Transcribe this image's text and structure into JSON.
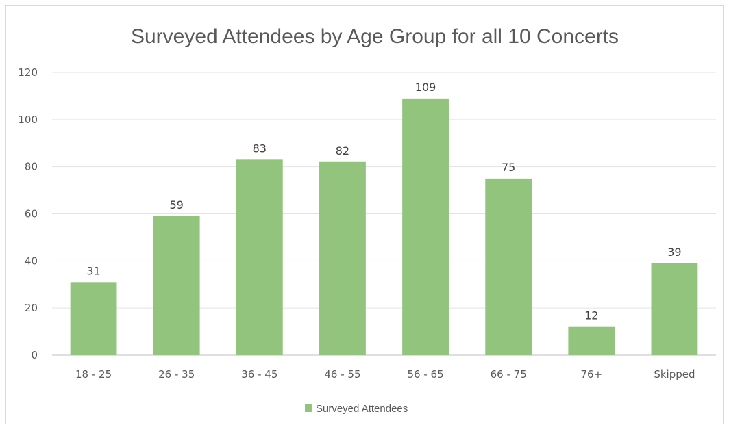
{
  "chart_data": {
    "type": "bar",
    "title": "Surveyed Attendees by Age Group for all 10 Concerts",
    "categories": [
      "18 - 25",
      "26 - 35",
      "36 - 45",
      "46 - 55",
      "56 - 65",
      "66 - 75",
      "76+",
      "Skipped"
    ],
    "series": [
      {
        "name": "Surveyed Attendees",
        "values": [
          31,
          59,
          83,
          82,
          109,
          75,
          12,
          39
        ],
        "color": "#93c47d"
      }
    ],
    "ylim": [
      0,
      120
    ],
    "yticks": [
      0,
      20,
      40,
      60,
      80,
      100,
      120
    ],
    "grid": true,
    "legend": "bottom",
    "xlabel": "",
    "ylabel": ""
  }
}
